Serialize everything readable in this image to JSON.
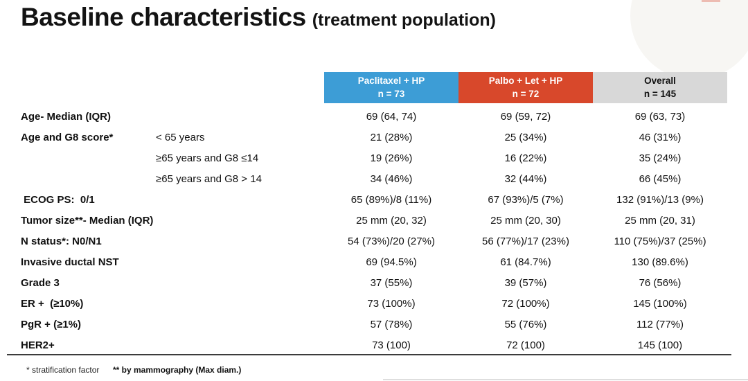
{
  "title": {
    "main": "Baseline characteristics",
    "suffix": "(treatment population)"
  },
  "colors": {
    "paclitaxel_header": "#3d9dd6",
    "palbo_header": "#d8482b",
    "overall_header": "#d8d8d8",
    "header_text_light": "#ffffff",
    "header_text_dark": "#111111"
  },
  "table": {
    "columns": [
      {
        "name": "Paclitaxel + HP",
        "n": "n = 73"
      },
      {
        "name": "Palbo + Let + HP",
        "n": "n = 72"
      },
      {
        "name": "Overall",
        "n": "n = 145"
      }
    ],
    "rows": [
      {
        "label": "Age- Median (IQR)",
        "sublabel": "",
        "values": [
          "69 (64, 74)",
          "69 (59, 72)",
          "69 (63, 73)"
        ]
      },
      {
        "label": "Age and G8 score*",
        "sublabel": "< 65 years",
        "values": [
          "21 (28%)",
          "25 (34%)",
          "46 (31%)"
        ]
      },
      {
        "label": "",
        "sublabel": "≥65 years and G8 ≤14",
        "values": [
          "19 (26%)",
          "16 (22%)",
          "35 (24%)"
        ]
      },
      {
        "label": "",
        "sublabel": "≥65 years and G8 > 14",
        "values": [
          "34 (46%)",
          "32 (44%)",
          "66 (45%)"
        ]
      },
      {
        "label": " ECOG PS:  0/1",
        "sublabel": "",
        "values": [
          "65 (89%)/8 (11%)",
          "67 (93%)/5 (7%)",
          "132 (91%)/13 (9%)"
        ]
      },
      {
        "label": "Tumor size**- Median (IQR)",
        "sublabel": "",
        "values": [
          "25 mm (20, 32)",
          "25 mm (20, 30)",
          "25 mm (20, 31)"
        ]
      },
      {
        "label": "N status*: N0/N1",
        "sublabel": "",
        "values": [
          "54 (73%)/20 (27%)",
          "56 (77%)/17 (23%)",
          "110 (75%)/37 (25%)"
        ]
      },
      {
        "label": "Invasive ductal NST",
        "sublabel": "",
        "values": [
          "69 (94.5%)",
          "61 (84.7%)",
          "130 (89.6%)"
        ]
      },
      {
        "label": "Grade 3",
        "sublabel": "",
        "values": [
          "37 (55%)",
          "39 (57%)",
          "76 (56%)"
        ]
      },
      {
        "label": "ER +  (≥10%)",
        "sublabel": "",
        "values": [
          "73 (100%)",
          "72 (100%)",
          "145 (100%)"
        ]
      },
      {
        "label": "PgR + (≥1%)",
        "sublabel": "",
        "values": [
          "57 (78%)",
          "55 (76%)",
          "112 (77%)"
        ]
      },
      {
        "label": "HER2+",
        "sublabel": "",
        "values": [
          "73 (100)",
          "72 (100)",
          "145 (100)"
        ]
      }
    ]
  },
  "footnotes": {
    "stratification": "* stratification factor",
    "mammography": "** by mammography (Max diam.)"
  }
}
